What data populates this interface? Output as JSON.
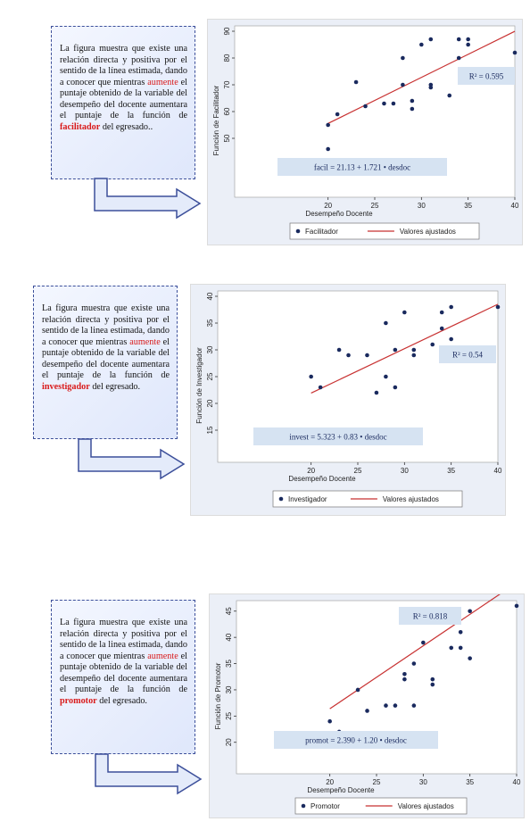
{
  "notes": [
    {
      "pre": "La figura muestra que existe una relación directa y positiva por el sentido de la línea estimada, dando a conocer que mientras ",
      "kw": "aumente",
      "mid": " el puntaje obtenido de la variable del desempeño del docente aumentara el puntaje de la función de ",
      "role": "facilitador",
      "post": " del egresado.."
    },
    {
      "pre": "La figura muestra que existe una relación directa y positiva por el sentido de la linea estimada, dando a conocer que mientras ",
      "kw": "aumente",
      "mid": " el puntaje obtenido de la variable del desempeño del docente aumentara el puntaje de la función de ",
      "role": "investigador",
      "post": " del egresado."
    },
    {
      "pre": "La figura muestra que existe una relación directa y positiva por el sentido de la linea estimada, dando a conocer que mientras ",
      "kw": "aumente",
      "mid": " el puntaje obtenido de la variable del desempeño del docente aumentara el puntaje de la función de ",
      "role": "promotor",
      "post": " del egresado."
    }
  ],
  "colors": {
    "point": "#1a2a5e",
    "fit_line": "#c83232",
    "panel_bg": "#ebeff7",
    "label_box": "#d6e3f2",
    "plot_bg": "#ffffff"
  },
  "chart_data": [
    {
      "type": "scatter",
      "xlabel": "Desempeño Docente",
      "ylabel": "Función de Facilitador",
      "xlim": [
        10,
        40
      ],
      "ylim": [
        28,
        92
      ],
      "xticks": [
        20,
        25,
        30,
        35,
        40
      ],
      "yticks": [
        50,
        60,
        70,
        80,
        90
      ],
      "series": [
        {
          "name": "Facilitador",
          "points": [
            [
              20,
              46
            ],
            [
              20,
              55
            ],
            [
              21,
              59
            ],
            [
              23,
              71
            ],
            [
              24,
              62
            ],
            [
              26,
              63
            ],
            [
              27,
              63
            ],
            [
              28,
              80
            ],
            [
              28,
              70
            ],
            [
              29,
              64
            ],
            [
              29,
              61
            ],
            [
              30,
              85
            ],
            [
              31,
              87
            ],
            [
              31,
              70
            ],
            [
              31,
              69
            ],
            [
              33,
              66
            ],
            [
              34,
              80
            ],
            [
              34,
              87
            ],
            [
              35,
              87
            ],
            [
              35,
              85
            ],
            [
              40,
              82
            ]
          ]
        }
      ],
      "fit": {
        "name": "Valores ajustados",
        "intercept": 21.13,
        "slope": 1.721,
        "x_range": [
          20,
          40
        ]
      },
      "equation": "facil = 21.13 + 1.721 • desdoc",
      "r2": "R² = 0.595",
      "legend": [
        "Facilitador",
        "Valores ajustados"
      ]
    },
    {
      "type": "scatter",
      "xlabel": "Desempeño Docente",
      "ylabel": "Función de Investigador",
      "xlim": [
        10,
        40
      ],
      "ylim": [
        9,
        41
      ],
      "xticks": [
        20,
        25,
        30,
        35,
        40
      ],
      "yticks": [
        15,
        20,
        25,
        30,
        35,
        40
      ],
      "series": [
        {
          "name": "Investigador",
          "points": [
            [
              20,
              25
            ],
            [
              21,
              23
            ],
            [
              23,
              30
            ],
            [
              24,
              29
            ],
            [
              26,
              29
            ],
            [
              27,
              22
            ],
            [
              28,
              35
            ],
            [
              28,
              25
            ],
            [
              29,
              30
            ],
            [
              29,
              23
            ],
            [
              30,
              37
            ],
            [
              31,
              30
            ],
            [
              31,
              29
            ],
            [
              33,
              31
            ],
            [
              34,
              37
            ],
            [
              34,
              34
            ],
            [
              35,
              38
            ],
            [
              35,
              32
            ],
            [
              40,
              38
            ]
          ]
        }
      ],
      "fit": {
        "name": "Valores ajustados",
        "intercept": 5.323,
        "slope": 0.83,
        "x_range": [
          20,
          40
        ]
      },
      "equation": "invest = 5.323 + 0.83 • desdoc",
      "r2": "R² = 0.54",
      "legend": [
        "Investigador",
        "Valores ajustados"
      ]
    },
    {
      "type": "scatter",
      "xlabel": "Desempeño Docente",
      "ylabel": "Función de Promotor",
      "xlim": [
        10,
        40
      ],
      "ylim": [
        14,
        47
      ],
      "xticks": [
        20,
        25,
        30,
        35,
        40
      ],
      "yticks": [
        20,
        25,
        30,
        35,
        40,
        45
      ],
      "series": [
        {
          "name": "Promotor",
          "points": [
            [
              20,
              20
            ],
            [
              20,
              24
            ],
            [
              21,
              22
            ],
            [
              23,
              30
            ],
            [
              24,
              26
            ],
            [
              26,
              27
            ],
            [
              27,
              27
            ],
            [
              28,
              33
            ],
            [
              28,
              32
            ],
            [
              29,
              35
            ],
            [
              29,
              27
            ],
            [
              30,
              39
            ],
            [
              31,
              32
            ],
            [
              31,
              31
            ],
            [
              33,
              38
            ],
            [
              34,
              41
            ],
            [
              34,
              38
            ],
            [
              35,
              45
            ],
            [
              35,
              36
            ],
            [
              40,
              46
            ]
          ]
        }
      ],
      "fit": {
        "name": "Valores ajustados",
        "intercept": 2.39,
        "slope": 1.2,
        "x_range": [
          20,
          40
        ]
      },
      "equation": "promot = 2.390 + 1.20 • desdoc",
      "r2": "R² = 0.818",
      "legend": [
        "Promotor",
        "Valores ajustados"
      ]
    }
  ]
}
